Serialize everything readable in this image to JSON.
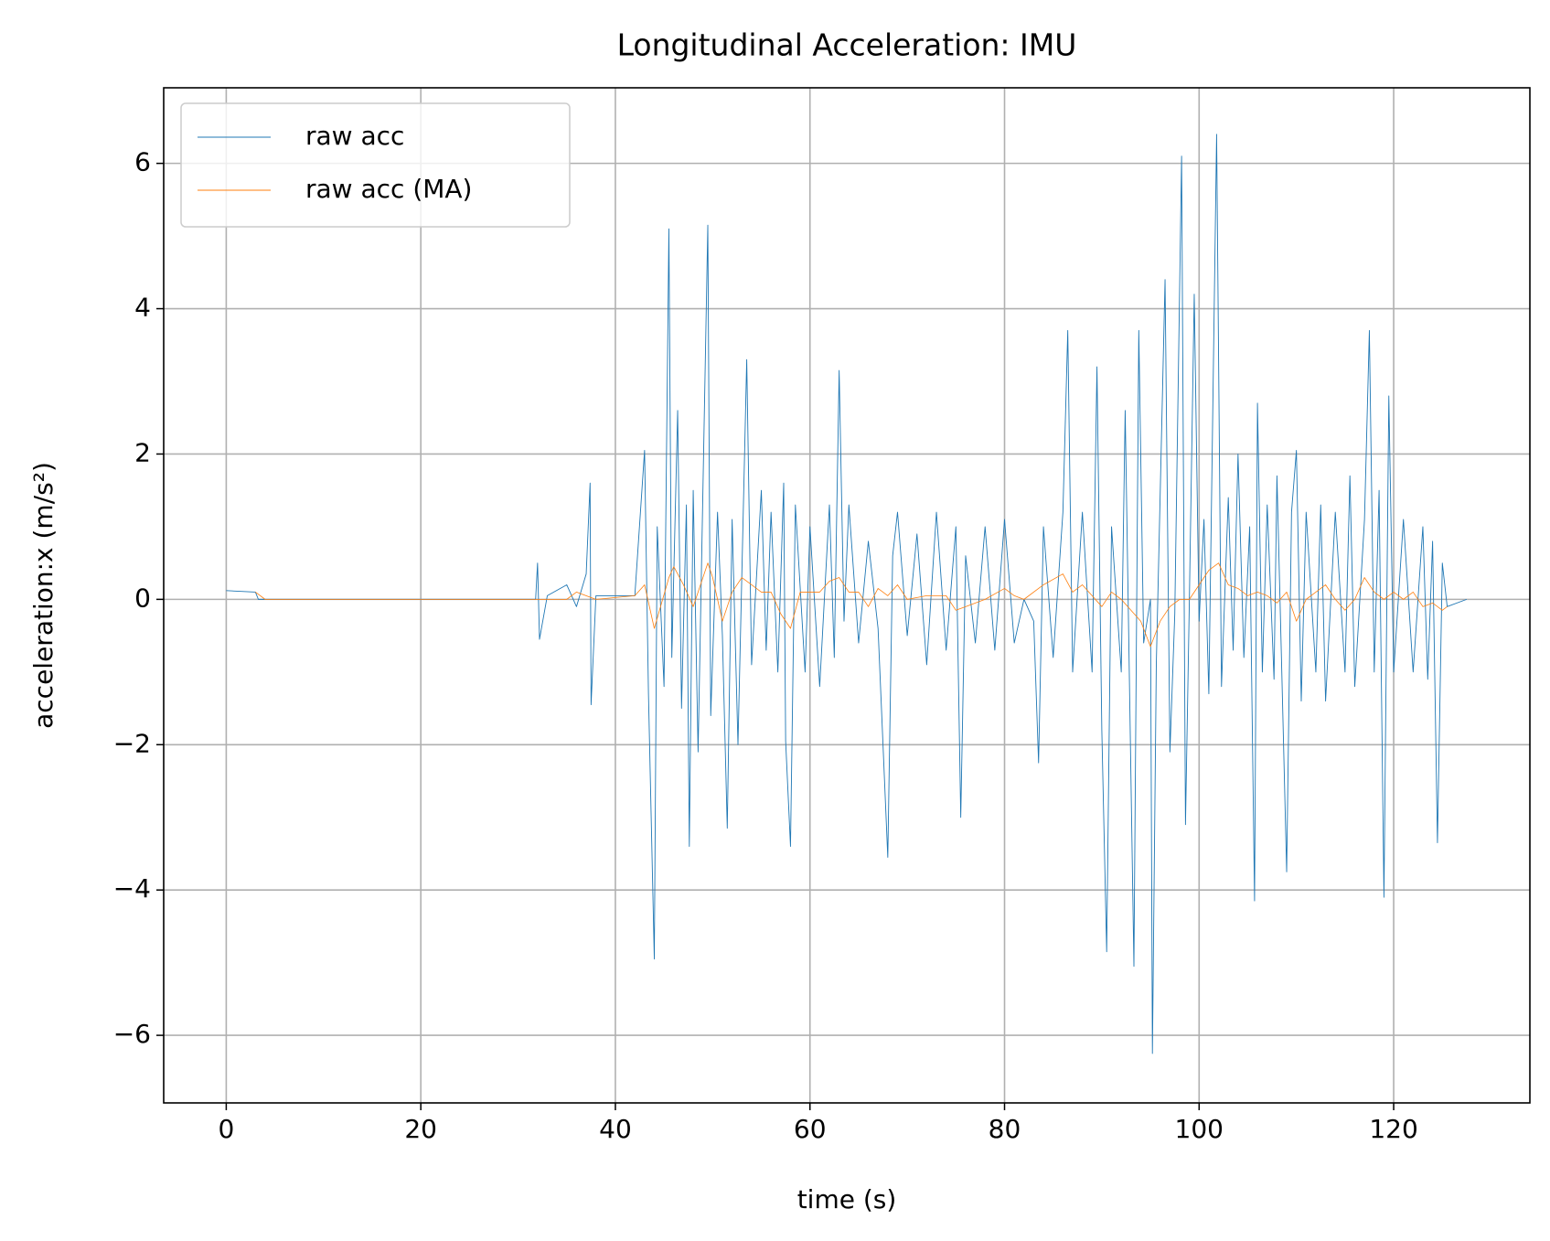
{
  "chart_data": {
    "type": "line",
    "title": "Longitudinal Acceleration: IMU",
    "x_label": "time (s)",
    "y_label": "acceleration:x (m/s²)",
    "xlim": [
      -6.43,
      134.0
    ],
    "ylim": [
      -6.93,
      7.04
    ],
    "xticks": [
      0,
      20,
      40,
      60,
      80,
      100,
      120
    ],
    "yticks": [
      {
        "value": -6,
        "label": "−6"
      },
      {
        "value": -4,
        "label": "−4"
      },
      {
        "value": -2,
        "label": "−2"
      },
      0,
      2,
      4,
      6
    ],
    "grid": true,
    "legend": "upper left",
    "series": [
      {
        "name": "raw acc",
        "color": "#1f77b4",
        "x": [
          0,
          3,
          3.3,
          10,
          20,
          31.8,
          32,
          32.2,
          33,
          35,
          36,
          37,
          37.4,
          37.5,
          38,
          42,
          43,
          43.4,
          44,
          44.3,
          45,
          45.5,
          45.8,
          46.4,
          46.8,
          47.3,
          47.6,
          48,
          48.5,
          49.5,
          49.8,
          50.5,
          51,
          51.5,
          52,
          52.6,
          53.5,
          54,
          55,
          55.5,
          56,
          56.7,
          57.3,
          57.5,
          58,
          58.5,
          59.5,
          60,
          61,
          62,
          62.5,
          63,
          63.5,
          64,
          65,
          66,
          67,
          68,
          68.5,
          69,
          70,
          71,
          72,
          73,
          74,
          75,
          75.5,
          76,
          77,
          78,
          79,
          80,
          81,
          82,
          83,
          83.5,
          84,
          85,
          86,
          86.5,
          87,
          88,
          89,
          89.5,
          90,
          90.5,
          91,
          92,
          92.4,
          92.8,
          93.3,
          93.8,
          94.3,
          95,
          95.2,
          95.6,
          96.5,
          97,
          97.5,
          98.2,
          98.6,
          99,
          99.5,
          100,
          100.5,
          101,
          101.8,
          102.3,
          103,
          103.5,
          104,
          104.6,
          105.2,
          105.7,
          106,
          106.5,
          107,
          107.7,
          108,
          108.5,
          109,
          109.5,
          110,
          110.5,
          111,
          112,
          112.5,
          113,
          114,
          115,
          115.5,
          116,
          117,
          117.5,
          118,
          118.5,
          119,
          119.5,
          120,
          121,
          122,
          123,
          123.5,
          124,
          124.5,
          125,
          125.5,
          127.5
        ],
        "values": [
          0.12,
          0.1,
          0.0,
          0.0,
          0.0,
          0.0,
          0.5,
          -0.55,
          0.05,
          0.2,
          -0.1,
          0.35,
          1.6,
          -1.45,
          0.05,
          0.05,
          2.05,
          -1.3,
          -4.95,
          1.0,
          -1.2,
          5.1,
          -0.8,
          2.6,
          -1.5,
          1.3,
          -3.4,
          1.5,
          -2.1,
          5.15,
          -1.6,
          1.2,
          -0.5,
          -3.15,
          1.1,
          -2.0,
          3.3,
          -0.9,
          1.5,
          -0.7,
          1.2,
          -1.0,
          1.6,
          -1.95,
          -3.4,
          1.3,
          -1.0,
          1.0,
          -1.2,
          1.3,
          -0.8,
          3.15,
          -0.3,
          1.3,
          -0.6,
          0.8,
          -0.4,
          -3.55,
          0.6,
          1.2,
          -0.5,
          0.9,
          -0.9,
          1.2,
          -0.7,
          1.0,
          -3.0,
          0.6,
          -0.6,
          1.0,
          -0.7,
          1.1,
          -0.6,
          0.0,
          -0.3,
          -2.25,
          1.0,
          -0.8,
          1.2,
          3.7,
          -1.0,
          1.2,
          -1.0,
          3.2,
          -1.8,
          -4.85,
          1.0,
          -1.0,
          2.6,
          -0.8,
          -5.05,
          3.7,
          -0.6,
          0.0,
          -6.25,
          -0.9,
          4.4,
          -2.1,
          -0.2,
          6.1,
          -3.1,
          0.0,
          4.2,
          -0.3,
          1.1,
          -1.3,
          6.4,
          -1.2,
          1.4,
          -0.7,
          2.0,
          -0.8,
          1.0,
          -4.15,
          2.7,
          -1.0,
          1.3,
          -1.1,
          1.7,
          -1.0,
          -3.75,
          1.2,
          2.05,
          -1.4,
          1.2,
          -1.0,
          1.3,
          -1.4,
          1.2,
          -1.0,
          1.7,
          -1.2,
          1.1,
          3.7,
          -1.0,
          1.5,
          -4.1,
          2.8,
          -1.0,
          1.1,
          -1.0,
          1.0,
          -1.1,
          0.8,
          -3.35,
          0.5,
          -0.1,
          0.0
        ]
      },
      {
        "name": "raw acc (MA)",
        "color": "#ff7f0e",
        "x": [
          3,
          4,
          30,
          35,
          36,
          38,
          42,
          43,
          44,
          45.5,
          46,
          47,
          48,
          49.5,
          50,
          51,
          52,
          53,
          54,
          55,
          56,
          57,
          58,
          59,
          60,
          61,
          62,
          63,
          64,
          65,
          66,
          67,
          68,
          69,
          70,
          72,
          74,
          75,
          76,
          78,
          80,
          81,
          82,
          84,
          86,
          87,
          88,
          89,
          90,
          91,
          92,
          94,
          95,
          96,
          97,
          98,
          99,
          100,
          101,
          102,
          103,
          104,
          105,
          106,
          107,
          108,
          109,
          110,
          111,
          112,
          113,
          114,
          115,
          116,
          117,
          118,
          119,
          120,
          121,
          122,
          123,
          124,
          125,
          125.5
        ],
        "values": [
          0.1,
          0.0,
          0.0,
          0.0,
          0.1,
          0.0,
          0.05,
          0.2,
          -0.4,
          0.3,
          0.45,
          0.2,
          -0.1,
          0.5,
          0.3,
          -0.3,
          0.1,
          0.3,
          0.2,
          0.1,
          0.1,
          -0.2,
          -0.4,
          0.1,
          0.1,
          0.1,
          0.25,
          0.3,
          0.1,
          0.1,
          -0.1,
          0.15,
          0.05,
          0.2,
          0.0,
          0.05,
          0.05,
          -0.15,
          -0.1,
          0.0,
          0.15,
          0.05,
          0.0,
          0.2,
          0.35,
          0.1,
          0.2,
          0.05,
          -0.1,
          0.1,
          0.0,
          -0.3,
          -0.65,
          -0.3,
          -0.1,
          0.0,
          0.0,
          0.2,
          0.4,
          0.5,
          0.2,
          0.15,
          0.05,
          0.1,
          0.05,
          -0.05,
          0.1,
          -0.3,
          0.0,
          0.1,
          0.2,
          0.0,
          -0.15,
          0.0,
          0.3,
          0.1,
          0.0,
          0.1,
          0.0,
          0.1,
          -0.1,
          -0.05,
          -0.15,
          -0.1
        ]
      }
    ]
  }
}
